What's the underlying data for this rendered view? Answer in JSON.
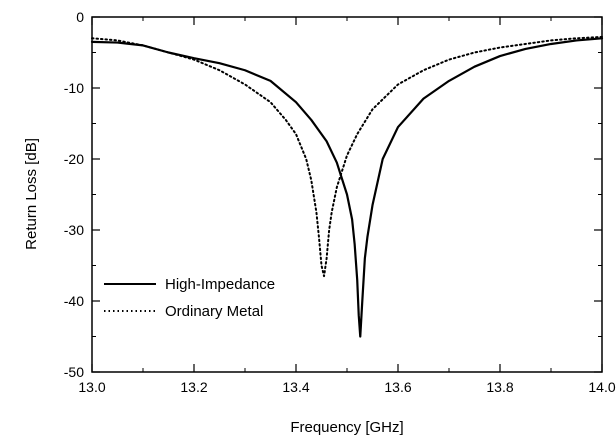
{
  "chart_data": {
    "type": "line",
    "xlabel": "Frequency [GHz]",
    "ylabel": "Return Loss [dB]",
    "xlim": [
      13.0,
      14.0
    ],
    "ylim": [
      -50,
      0
    ],
    "x_ticks": [
      "13.0",
      "13.2",
      "13.4",
      "13.6",
      "13.8",
      "14.0"
    ],
    "y_ticks": [
      "0",
      "-10",
      "-20",
      "-30",
      "-40",
      "-50"
    ],
    "grid": false,
    "legend_position": "bottom-left",
    "series": [
      {
        "name": "High-Impedance",
        "style": "solid",
        "color": "#000000",
        "x": [
          13.0,
          13.05,
          13.1,
          13.15,
          13.2,
          13.25,
          13.3,
          13.35,
          13.4,
          13.43,
          13.46,
          13.48,
          13.5,
          13.51,
          13.515,
          13.52,
          13.523,
          13.526,
          13.53,
          13.535,
          13.54,
          13.55,
          13.57,
          13.6,
          13.65,
          13.7,
          13.75,
          13.8,
          13.85,
          13.9,
          13.95,
          14.0
        ],
        "y": [
          -3.5,
          -3.6,
          -4.0,
          -5.0,
          -5.8,
          -6.5,
          -7.5,
          -9.0,
          -12.0,
          -14.5,
          -17.5,
          -20.5,
          -25.0,
          -28.5,
          -32.0,
          -37.0,
          -42.0,
          -45.0,
          -40.0,
          -34.0,
          -31.0,
          -26.5,
          -20.0,
          -15.5,
          -11.5,
          -9.0,
          -7.0,
          -5.5,
          -4.5,
          -3.8,
          -3.3,
          -3.0
        ]
      },
      {
        "name": "Ordinary Metal",
        "style": "dotted",
        "color": "#000000",
        "x": [
          13.0,
          13.05,
          13.1,
          13.15,
          13.2,
          13.25,
          13.3,
          13.35,
          13.38,
          13.4,
          13.42,
          13.43,
          13.44,
          13.445,
          13.45,
          13.455,
          13.46,
          13.465,
          13.47,
          13.48,
          13.5,
          13.52,
          13.55,
          13.6,
          13.65,
          13.7,
          13.75,
          13.8,
          13.85,
          13.9,
          13.95,
          14.0
        ],
        "y": [
          -3.0,
          -3.3,
          -4.0,
          -5.0,
          -6.0,
          -7.5,
          -9.5,
          -12.0,
          -14.5,
          -16.5,
          -20.0,
          -23.0,
          -27.5,
          -31.0,
          -35.0,
          -36.5,
          -34.0,
          -30.0,
          -27.5,
          -24.0,
          -19.5,
          -16.5,
          -13.0,
          -9.5,
          -7.5,
          -6.0,
          -5.0,
          -4.3,
          -3.8,
          -3.3,
          -3.0,
          -2.8
        ]
      }
    ]
  }
}
